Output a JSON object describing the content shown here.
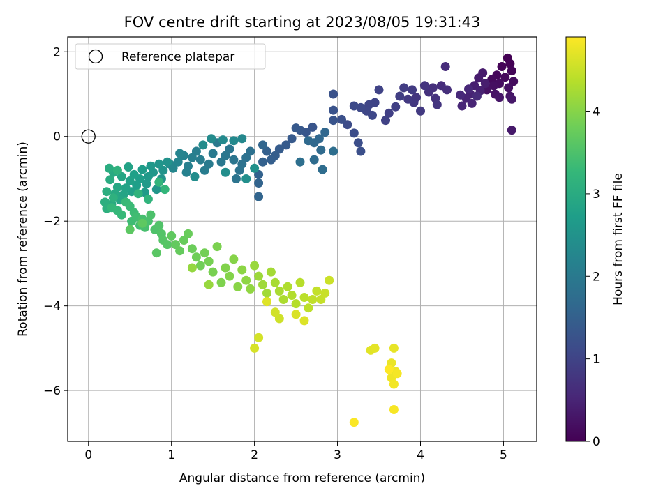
{
  "chart_data": {
    "type": "scatter",
    "title": "FOV centre drift starting at 2023/08/05 19:31:43",
    "xlabel": "Angular distance from reference (arcmin)",
    "ylabel": "Rotation from reference (arcmin)",
    "xlim": [
      -0.25,
      5.4
    ],
    "ylim": [
      -7.2,
      2.35
    ],
    "xticks": [
      0,
      1,
      2,
      3,
      4,
      5
    ],
    "xtick_labels": [
      "0",
      "1",
      "2",
      "3",
      "4",
      "5"
    ],
    "yticks": [
      2,
      0,
      -2,
      -4,
      -6
    ],
    "ytick_labels": [
      "2",
      "0",
      "−2",
      "−4",
      "−6"
    ],
    "grid": true,
    "legend_position": "top-left",
    "legend": [
      {
        "label": "Reference platepar",
        "marker": "open-circle"
      }
    ],
    "reference_point": {
      "x": 0,
      "y": 0
    },
    "colorbar": {
      "label": "Hours from first FF file",
      "colormap": "viridis",
      "range": [
        0,
        4.9
      ],
      "ticks": [
        0,
        1,
        2,
        3,
        4
      ],
      "tick_labels": [
        "0",
        "1",
        "2",
        "3",
        "4"
      ]
    },
    "colormap_stops": [
      "#440154",
      "#482878",
      "#3e4989",
      "#31688e",
      "#26828e",
      "#1f9e89",
      "#35b779",
      "#6ece58",
      "#b5de2b",
      "#fde725"
    ],
    "series": [
      {
        "points": [
          [
            5.05,
            1.85
          ],
          [
            5.08,
            1.72
          ],
          [
            4.98,
            1.65
          ],
          [
            5.1,
            1.55
          ],
          [
            4.92,
            1.45
          ],
          [
            5.02,
            1.4
          ],
          [
            4.86,
            1.35
          ],
          [
            5.12,
            1.3
          ],
          [
            4.95,
            1.25
          ],
          [
            4.88,
            1.2
          ],
          [
            5.06,
            1.15
          ],
          [
            4.8,
            1.1
          ],
          [
            4.9,
            1.0
          ],
          [
            5.08,
            0.95
          ],
          [
            4.95,
            0.92
          ],
          [
            5.1,
            0.88
          ],
          [
            5.1,
            0.15
          ],
          [
            4.75,
            1.5
          ],
          [
            4.7,
            1.38
          ],
          [
            4.78,
            1.25
          ],
          [
            4.65,
            1.2
          ],
          [
            4.72,
            1.08
          ],
          [
            4.6,
            1.0
          ],
          [
            4.55,
            0.9
          ],
          [
            4.62,
            0.78
          ],
          [
            4.5,
            0.72
          ],
          [
            4.58,
            1.12
          ],
          [
            4.48,
            0.98
          ],
          [
            4.68,
            0.95
          ],
          [
            4.3,
            1.65
          ],
          [
            4.25,
            1.2
          ],
          [
            4.32,
            1.1
          ],
          [
            4.15,
            1.15
          ],
          [
            4.1,
            1.05
          ],
          [
            4.18,
            0.9
          ],
          [
            4.05,
            1.2
          ],
          [
            4.2,
            0.75
          ],
          [
            3.95,
            0.92
          ],
          [
            3.92,
            0.8
          ],
          [
            3.85,
            0.88
          ],
          [
            4.0,
            0.6
          ],
          [
            3.9,
            1.1
          ],
          [
            3.8,
            1.15
          ],
          [
            3.75,
            0.95
          ],
          [
            3.7,
            0.7
          ],
          [
            3.62,
            0.55
          ],
          [
            3.58,
            0.38
          ],
          [
            3.5,
            1.1
          ],
          [
            3.45,
            0.8
          ],
          [
            3.38,
            0.75
          ],
          [
            3.35,
            0.6
          ],
          [
            3.42,
            0.5
          ],
          [
            3.28,
            0.68
          ],
          [
            3.2,
            0.72
          ],
          [
            3.12,
            0.28
          ],
          [
            3.2,
            0.08
          ],
          [
            3.25,
            -0.15
          ],
          [
            3.28,
            -0.35
          ],
          [
            3.05,
            0.4
          ],
          [
            2.95,
            1.0
          ],
          [
            2.95,
            0.62
          ],
          [
            2.95,
            0.38
          ],
          [
            2.7,
            0.22
          ],
          [
            2.62,
            0.1
          ],
          [
            2.55,
            0.15
          ],
          [
            2.5,
            0.2
          ],
          [
            2.45,
            -0.05
          ],
          [
            2.38,
            -0.2
          ],
          [
            2.3,
            -0.3
          ],
          [
            2.25,
            -0.45
          ],
          [
            2.2,
            -0.55
          ],
          [
            2.15,
            -0.35
          ],
          [
            2.1,
            -0.6
          ],
          [
            2.05,
            -0.9
          ],
          [
            2.05,
            -1.1
          ],
          [
            2.05,
            -1.42
          ],
          [
            2.1,
            -0.2
          ],
          [
            2.85,
            0.1
          ],
          [
            2.78,
            -0.05
          ],
          [
            2.72,
            -0.15
          ],
          [
            2.65,
            -0.1
          ],
          [
            2.8,
            -0.32
          ],
          [
            2.72,
            -0.55
          ],
          [
            2.82,
            -0.78
          ],
          [
            2.95,
            -0.35
          ],
          [
            2.55,
            -0.6
          ],
          [
            1.95,
            -0.35
          ],
          [
            1.9,
            -0.5
          ],
          [
            1.85,
            -0.65
          ],
          [
            1.82,
            -0.8
          ],
          [
            1.78,
            -1.0
          ],
          [
            1.75,
            -0.55
          ],
          [
            1.7,
            -0.3
          ],
          [
            1.65,
            -0.45
          ],
          [
            1.6,
            -0.6
          ],
          [
            1.55,
            -0.15
          ],
          [
            1.5,
            -0.4
          ],
          [
            1.45,
            -0.65
          ],
          [
            1.4,
            -0.8
          ],
          [
            1.35,
            -0.55
          ],
          [
            1.3,
            -0.35
          ],
          [
            1.25,
            -0.5
          ],
          [
            1.2,
            -0.7
          ],
          [
            1.18,
            -0.85
          ],
          [
            1.15,
            -0.45
          ],
          [
            1.1,
            -0.4
          ],
          [
            1.08,
            -0.6
          ],
          [
            1.02,
            -0.75
          ],
          [
            0.98,
            -0.65
          ],
          [
            1.85,
            -0.05
          ],
          [
            1.75,
            -0.1
          ],
          [
            1.62,
            -0.08
          ],
          [
            1.48,
            -0.05
          ],
          [
            1.38,
            -0.2
          ],
          [
            1.28,
            -0.95
          ],
          [
            1.65,
            -0.85
          ],
          [
            1.9,
            -1.0
          ],
          [
            2.0,
            -0.75
          ],
          [
            0.95,
            -0.6
          ],
          [
            0.9,
            -0.8
          ],
          [
            0.88,
            -1.0
          ],
          [
            0.85,
            -0.65
          ],
          [
            0.82,
            -1.25
          ],
          [
            0.78,
            -0.85
          ],
          [
            0.75,
            -0.7
          ],
          [
            0.72,
            -0.95
          ],
          [
            0.7,
            -1.12
          ],
          [
            0.68,
            -1.32
          ],
          [
            0.65,
            -0.78
          ],
          [
            0.62,
            -1.0
          ],
          [
            0.58,
            -1.15
          ],
          [
            0.55,
            -0.9
          ],
          [
            0.52,
            -1.3
          ],
          [
            0.5,
            -1.05
          ],
          [
            0.48,
            -0.72
          ],
          [
            0.45,
            -1.22
          ],
          [
            0.42,
            -1.38
          ],
          [
            0.4,
            -0.95
          ],
          [
            0.38,
            -1.5
          ],
          [
            0.35,
            -1.2
          ],
          [
            0.32,
            -1.35
          ],
          [
            0.3,
            -0.85
          ],
          [
            0.28,
            -1.6
          ],
          [
            0.26,
            -1.02
          ],
          [
            0.25,
            -0.75
          ],
          [
            0.22,
            -1.3
          ],
          [
            0.2,
            -1.55
          ],
          [
            0.22,
            -1.7
          ],
          [
            0.3,
            -1.45
          ],
          [
            0.35,
            -0.8
          ],
          [
            0.6,
            -1.35
          ],
          [
            0.72,
            -1.48
          ],
          [
            0.85,
            -1.08
          ],
          [
            0.92,
            -1.25
          ],
          [
            0.28,
            -1.68
          ],
          [
            0.35,
            -1.75
          ],
          [
            0.4,
            -1.85
          ],
          [
            0.45,
            -1.55
          ],
          [
            0.5,
            -1.65
          ],
          [
            0.55,
            -1.8
          ],
          [
            0.52,
            -2.0
          ],
          [
            0.58,
            -1.9
          ],
          [
            0.62,
            -2.1
          ],
          [
            0.65,
            -1.95
          ],
          [
            0.68,
            -2.15
          ],
          [
            0.72,
            -2.0
          ],
          [
            0.75,
            -1.85
          ],
          [
            0.8,
            -2.2
          ],
          [
            0.85,
            -2.1
          ],
          [
            0.88,
            -2.3
          ],
          [
            0.9,
            -2.45
          ],
          [
            0.95,
            -2.55
          ],
          [
            0.82,
            -2.75
          ],
          [
            0.5,
            -2.2
          ],
          [
            0.65,
            -2.05
          ],
          [
            1.0,
            -2.35
          ],
          [
            1.05,
            -2.55
          ],
          [
            1.1,
            -2.7
          ],
          [
            1.15,
            -2.45
          ],
          [
            1.2,
            -2.3
          ],
          [
            1.25,
            -2.65
          ],
          [
            1.3,
            -2.85
          ],
          [
            1.35,
            -3.05
          ],
          [
            1.4,
            -2.75
          ],
          [
            1.45,
            -2.95
          ],
          [
            1.5,
            -3.2
          ],
          [
            1.55,
            -2.6
          ],
          [
            1.6,
            -3.45
          ],
          [
            1.65,
            -3.1
          ],
          [
            1.7,
            -3.3
          ],
          [
            1.75,
            -2.9
          ],
          [
            1.8,
            -3.55
          ],
          [
            1.85,
            -3.15
          ],
          [
            1.9,
            -3.4
          ],
          [
            1.95,
            -3.6
          ],
          [
            1.25,
            -3.1
          ],
          [
            1.45,
            -3.5
          ],
          [
            2.0,
            -3.05
          ],
          [
            2.05,
            -3.3
          ],
          [
            2.1,
            -3.5
          ],
          [
            2.15,
            -3.7
          ],
          [
            2.2,
            -3.2
          ],
          [
            2.25,
            -3.45
          ],
          [
            2.3,
            -3.65
          ],
          [
            2.35,
            -3.85
          ],
          [
            2.4,
            -3.55
          ],
          [
            2.45,
            -3.75
          ],
          [
            2.5,
            -3.95
          ],
          [
            2.55,
            -3.45
          ],
          [
            2.6,
            -3.8
          ],
          [
            2.65,
            -4.05
          ],
          [
            2.7,
            -3.85
          ],
          [
            2.75,
            -3.65
          ],
          [
            2.8,
            -3.85
          ],
          [
            2.85,
            -3.7
          ],
          [
            2.9,
            -3.4
          ],
          [
            2.3,
            -4.3
          ],
          [
            2.25,
            -4.15
          ],
          [
            2.05,
            -4.75
          ],
          [
            2.0,
            -5.0
          ],
          [
            2.5,
            -4.2
          ],
          [
            2.6,
            -4.35
          ],
          [
            2.15,
            -3.9
          ],
          [
            3.4,
            -5.05
          ],
          [
            3.45,
            -5.0
          ],
          [
            3.68,
            -5.0
          ],
          [
            3.65,
            -5.35
          ],
          [
            3.7,
            -5.55
          ],
          [
            3.65,
            -5.7
          ],
          [
            3.68,
            -5.85
          ],
          [
            3.72,
            -5.6
          ],
          [
            3.68,
            -6.45
          ],
          [
            3.2,
            -6.75
          ],
          [
            3.62,
            -5.5
          ]
        ]
      }
    ]
  }
}
